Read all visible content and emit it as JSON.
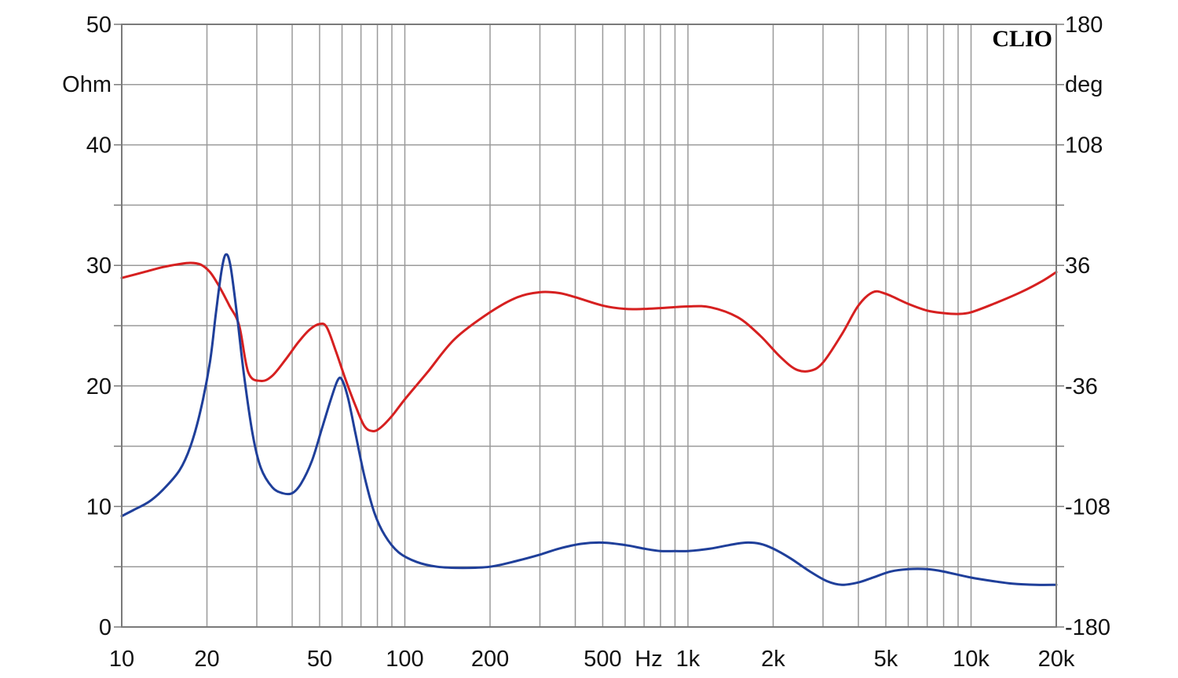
{
  "chart_data": {
    "type": "line",
    "brand": "CLIO",
    "x_axis": {
      "scale": "log",
      "range": [
        10,
        20000
      ],
      "ticks": [
        {
          "value": 10,
          "label": "10"
        },
        {
          "value": 20,
          "label": "20"
        },
        {
          "value": 50,
          "label": "50"
        },
        {
          "value": 100,
          "label": "100"
        },
        {
          "value": 200,
          "label": "200"
        },
        {
          "value": 500,
          "label": "500"
        },
        {
          "value": 1000,
          "label": "1k"
        },
        {
          "value": 2000,
          "label": "2k"
        },
        {
          "value": 5000,
          "label": "5k"
        },
        {
          "value": 10000,
          "label": "10k"
        },
        {
          "value": 20000,
          "label": "20k"
        }
      ],
      "unit_label": "Hz"
    },
    "y_left": {
      "range": [
        0,
        50
      ],
      "ticks": [
        0,
        10,
        20,
        30,
        40,
        50
      ],
      "unit_label": "Ohm"
    },
    "y_right": {
      "range": [
        -180,
        180
      ],
      "ticks": [
        -180,
        -108,
        -36,
        36,
        108,
        180
      ],
      "unit_label": "deg"
    },
    "grid": true,
    "series": [
      {
        "axis": "left",
        "color": "#1f3f9a",
        "points": [
          [
            10,
            9.2
          ],
          [
            11,
            9.7
          ],
          [
            12.5,
            10.4
          ],
          [
            14,
            11.4
          ],
          [
            16,
            13.0
          ],
          [
            17.5,
            15.0
          ],
          [
            19,
            18.0
          ],
          [
            20.5,
            22.0
          ],
          [
            21.5,
            26.0
          ],
          [
            22.5,
            29.5
          ],
          [
            23.3,
            30.9
          ],
          [
            24.2,
            30.0
          ],
          [
            25.5,
            26.0
          ],
          [
            27,
            21.0
          ],
          [
            29,
            16.0
          ],
          [
            31,
            13.2
          ],
          [
            34,
            11.6
          ],
          [
            37,
            11.1
          ],
          [
            40,
            11.1
          ],
          [
            43,
            11.9
          ],
          [
            47,
            13.8
          ],
          [
            51,
            16.5
          ],
          [
            55,
            19.0
          ],
          [
            58,
            20.5
          ],
          [
            60,
            20.5
          ],
          [
            63,
            19.0
          ],
          [
            67,
            16.0
          ],
          [
            72,
            12.5
          ],
          [
            78,
            9.5
          ],
          [
            85,
            7.6
          ],
          [
            95,
            6.2
          ],
          [
            110,
            5.4
          ],
          [
            130,
            5.0
          ],
          [
            160,
            4.9
          ],
          [
            200,
            5.0
          ],
          [
            250,
            5.5
          ],
          [
            300,
            6.0
          ],
          [
            350,
            6.5
          ],
          [
            420,
            6.9
          ],
          [
            500,
            7.0
          ],
          [
            600,
            6.8
          ],
          [
            700,
            6.5
          ],
          [
            800,
            6.3
          ],
          [
            900,
            6.3
          ],
          [
            1000,
            6.3
          ],
          [
            1200,
            6.5
          ],
          [
            1400,
            6.8
          ],
          [
            1600,
            7.0
          ],
          [
            1800,
            6.9
          ],
          [
            2000,
            6.5
          ],
          [
            2300,
            5.7
          ],
          [
            2700,
            4.6
          ],
          [
            3100,
            3.8
          ],
          [
            3500,
            3.5
          ],
          [
            4000,
            3.7
          ],
          [
            4500,
            4.1
          ],
          [
            5200,
            4.6
          ],
          [
            6000,
            4.8
          ],
          [
            7000,
            4.8
          ],
          [
            8000,
            4.6
          ],
          [
            10000,
            4.1
          ],
          [
            12000,
            3.8
          ],
          [
            14000,
            3.6
          ],
          [
            17000,
            3.5
          ],
          [
            20000,
            3.5
          ]
        ]
      },
      {
        "axis": "right",
        "color": "#d62020",
        "points": [
          [
            10,
            28.5
          ],
          [
            12,
            32.0
          ],
          [
            14,
            35.0
          ],
          [
            16,
            36.8
          ],
          [
            17.5,
            37.5
          ],
          [
            19,
            36.5
          ],
          [
            20.5,
            32.0
          ],
          [
            22,
            24.0
          ],
          [
            24,
            12.0
          ],
          [
            26,
            0.0
          ],
          [
            28,
            -28.0
          ],
          [
            31,
            -33.0
          ],
          [
            34,
            -30.0
          ],
          [
            38,
            -20.0
          ],
          [
            42,
            -10.0
          ],
          [
            46,
            -2.5
          ],
          [
            50,
            1.0
          ],
          [
            53,
            -1.0
          ],
          [
            57,
            -15.0
          ],
          [
            62,
            -33.0
          ],
          [
            67,
            -48.0
          ],
          [
            72,
            -60.0
          ],
          [
            77,
            -63.0
          ],
          [
            82,
            -61.0
          ],
          [
            90,
            -54.0
          ],
          [
            100,
            -44.0
          ],
          [
            120,
            -28.0
          ],
          [
            150,
            -8.0
          ],
          [
            200,
            8.0
          ],
          [
            250,
            17.0
          ],
          [
            300,
            20.0
          ],
          [
            350,
            19.5
          ],
          [
            400,
            17.0
          ],
          [
            500,
            12.0
          ],
          [
            600,
            10.0
          ],
          [
            700,
            10.0
          ],
          [
            800,
            10.5
          ],
          [
            1000,
            11.5
          ],
          [
            1200,
            11.0
          ],
          [
            1500,
            5.0
          ],
          [
            1800,
            -6.0
          ],
          [
            2100,
            -18.0
          ],
          [
            2400,
            -26.0
          ],
          [
            2700,
            -27.0
          ],
          [
            3000,
            -22.0
          ],
          [
            3500,
            -5.0
          ],
          [
            4000,
            12.0
          ],
          [
            4500,
            20.0
          ],
          [
            5000,
            19.0
          ],
          [
            6000,
            13.0
          ],
          [
            7000,
            9.0
          ],
          [
            8000,
            7.5
          ],
          [
            9000,
            7.0
          ],
          [
            10000,
            8.0
          ],
          [
            12000,
            13.0
          ],
          [
            15000,
            20.0
          ],
          [
            18000,
            27.0
          ],
          [
            20000,
            32.0
          ]
        ]
      }
    ]
  }
}
